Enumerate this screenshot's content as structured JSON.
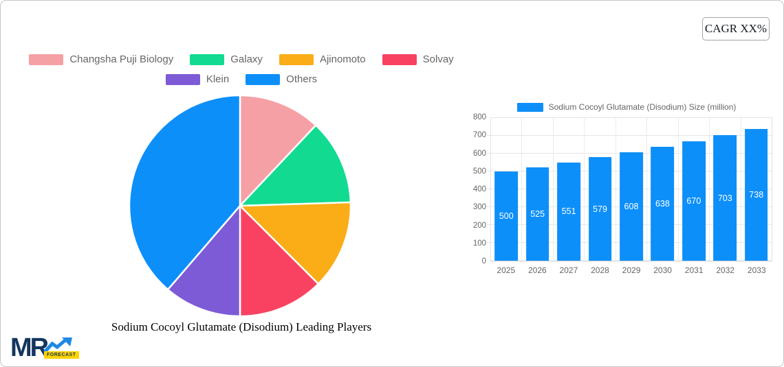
{
  "badge": {
    "label": "CAGR XX%"
  },
  "logo": {
    "mr": "MR",
    "forecast": "FORECAST"
  },
  "chart_data": [
    {
      "type": "pie",
      "title": "Sodium Cocoyl Glutamate (Disodium) Leading Players",
      "legend_position": "top",
      "start_angle": "top",
      "direction": "clockwise",
      "labels": [
        "Changsha Puji Biology",
        "Galaxy",
        "Ajinomoto",
        "Solvay",
        "Klein",
        "Others"
      ],
      "values": [
        12,
        12.5,
        13,
        12.5,
        11.3,
        38.7
      ],
      "colors": [
        "#f5a0a5",
        "#12db91",
        "#fbad18",
        "#f94262",
        "#7d5bd6",
        "#0d8ff9"
      ]
    },
    {
      "type": "bar",
      "series_label": "Sodium Cocoyl Glutamate (Disodium) Size (million)",
      "categories": [
        "2025",
        "2026",
        "2027",
        "2028",
        "2029",
        "2030",
        "2031",
        "2032",
        "2033"
      ],
      "values": [
        500,
        525,
        551,
        579,
        608,
        638,
        670,
        703,
        738
      ],
      "bar_color": "#0d8ff9",
      "value_label_color": "#ffffff",
      "ylim": [
        0,
        800
      ],
      "ytick_step": 100,
      "grid": true,
      "legend_position": "top"
    }
  ]
}
